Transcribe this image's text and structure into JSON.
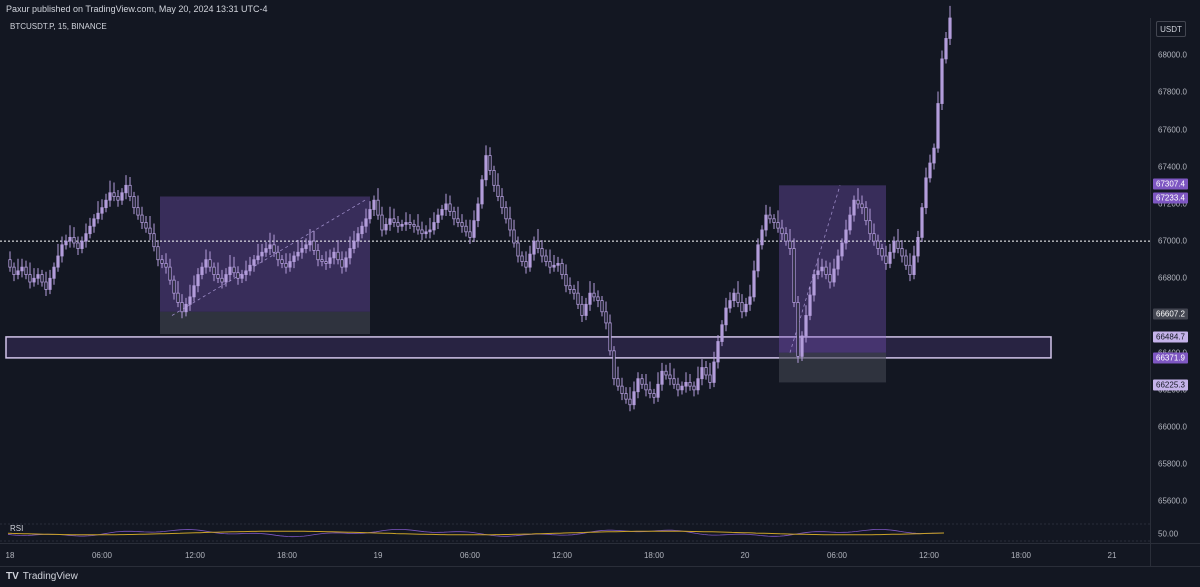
{
  "header": {
    "publisher_text": "Paxur published on TradingView.com, May 20, 2024 13:31 UTC-4"
  },
  "chart": {
    "symbol_label": "BTCUSDT.P, 15, BINANCE",
    "currency_button": "USDT",
    "rsi_label": "RSI",
    "rsi_value": "50.00",
    "footer_brand": "TradingView"
  },
  "colors": {
    "background": "#131722",
    "candle": "#b39ddb",
    "zone": "#7e57c2",
    "badge_dark": "#7e57c2",
    "badge_light": "#c5b3ea",
    "rsi_line": "#c9a227"
  },
  "price_axis": {
    "ticks": [
      "68000.0",
      "67800.0",
      "67600.0",
      "67400.0",
      "67200.0",
      "67000.0",
      "66800.0",
      "66600.0",
      "66400.0",
      "66200.0",
      "66000.0",
      "65800.0",
      "65600.0"
    ]
  },
  "price_badges": [
    {
      "label": "67307.4",
      "style": "dark"
    },
    {
      "label": "67233.4",
      "style": "dark"
    },
    {
      "label": "66607.2",
      "style": "grey"
    },
    {
      "label": "66484.7",
      "style": "light"
    },
    {
      "label": "66371.9",
      "style": "dark"
    },
    {
      "label": "66225.3",
      "style": "light"
    }
  ],
  "time_axis": {
    "ticks": [
      "18",
      "06:00",
      "12:00",
      "18:00",
      "19",
      "06:00",
      "12:00",
      "18:00",
      "20",
      "06:00",
      "12:00",
      "18:00",
      "21"
    ]
  },
  "chart_data": {
    "type": "candlestick",
    "symbol": "BTCUSDT.P",
    "interval": "15",
    "ylim": [
      65500,
      68200
    ],
    "current_price_line": 67000,
    "support_zone": [
      66371.9,
      66484.7
    ],
    "close_path": [
      [
        0,
        66900
      ],
      [
        8,
        66820
      ],
      [
        16,
        66860
      ],
      [
        24,
        66780
      ],
      [
        32,
        66820
      ],
      [
        40,
        66740
      ],
      [
        48,
        66860
      ],
      [
        56,
        66980
      ],
      [
        64,
        67020
      ],
      [
        72,
        66960
      ],
      [
        80,
        67040
      ],
      [
        88,
        67120
      ],
      [
        96,
        67180
      ],
      [
        104,
        67260
      ],
      [
        112,
        67220
      ],
      [
        120,
        67300
      ],
      [
        128,
        67180
      ],
      [
        136,
        67100
      ],
      [
        144,
        67040
      ],
      [
        152,
        66900
      ],
      [
        160,
        66860
      ],
      [
        168,
        66720
      ],
      [
        176,
        66620
      ],
      [
        184,
        66700
      ],
      [
        192,
        66820
      ],
      [
        200,
        66900
      ],
      [
        208,
        66820
      ],
      [
        216,
        66780
      ],
      [
        224,
        66860
      ],
      [
        232,
        66800
      ],
      [
        240,
        66840
      ],
      [
        248,
        66900
      ],
      [
        256,
        66940
      ],
      [
        264,
        66980
      ],
      [
        272,
        66900
      ],
      [
        280,
        66860
      ],
      [
        288,
        66920
      ],
      [
        296,
        66960
      ],
      [
        304,
        67000
      ],
      [
        312,
        66900
      ],
      [
        320,
        66880
      ],
      [
        328,
        66940
      ],
      [
        336,
        66860
      ],
      [
        344,
        66960
      ],
      [
        352,
        67040
      ],
      [
        360,
        67120
      ],
      [
        368,
        67220
      ],
      [
        376,
        67060
      ],
      [
        384,
        67120
      ],
      [
        392,
        67080
      ],
      [
        400,
        67100
      ],
      [
        408,
        67080
      ],
      [
        416,
        67040
      ],
      [
        424,
        67060
      ],
      [
        432,
        67140
      ],
      [
        440,
        67200
      ],
      [
        448,
        67120
      ],
      [
        456,
        67080
      ],
      [
        464,
        67020
      ],
      [
        472,
        67200
      ],
      [
        480,
        67460
      ],
      [
        488,
        67300
      ],
      [
        496,
        67180
      ],
      [
        504,
        67060
      ],
      [
        512,
        66920
      ],
      [
        520,
        66860
      ],
      [
        528,
        67000
      ],
      [
        536,
        66920
      ],
      [
        544,
        66860
      ],
      [
        552,
        66880
      ],
      [
        560,
        66760
      ],
      [
        568,
        66720
      ],
      [
        576,
        66600
      ],
      [
        584,
        66720
      ],
      [
        592,
        66680
      ],
      [
        600,
        66560
      ],
      [
        608,
        66260
      ],
      [
        616,
        66180
      ],
      [
        624,
        66120
      ],
      [
        632,
        66260
      ],
      [
        640,
        66200
      ],
      [
        648,
        66160
      ],
      [
        656,
        66300
      ],
      [
        664,
        66260
      ],
      [
        672,
        66200
      ],
      [
        680,
        66240
      ],
      [
        688,
        66200
      ],
      [
        696,
        66320
      ],
      [
        704,
        66240
      ],
      [
        712,
        66460
      ],
      [
        720,
        66640
      ],
      [
        728,
        66720
      ],
      [
        736,
        66620
      ],
      [
        744,
        66700
      ],
      [
        752,
        66980
      ],
      [
        760,
        67140
      ],
      [
        768,
        67100
      ],
      [
        776,
        67040
      ],
      [
        784,
        66960
      ],
      [
        792,
        66380
      ],
      [
        800,
        66600
      ],
      [
        808,
        66820
      ],
      [
        816,
        66860
      ],
      [
        824,
        66780
      ],
      [
        832,
        66920
      ],
      [
        840,
        67060
      ],
      [
        848,
        67220
      ],
      [
        856,
        67180
      ],
      [
        864,
        67040
      ],
      [
        872,
        66960
      ],
      [
        880,
        66880
      ],
      [
        888,
        67000
      ],
      [
        896,
        66920
      ],
      [
        904,
        66820
      ],
      [
        912,
        67020
      ],
      [
        920,
        67340
      ],
      [
        928,
        67500
      ],
      [
        936,
        67980
      ],
      [
        944,
        68200
      ]
    ],
    "rsi_baseline": 50.0
  }
}
